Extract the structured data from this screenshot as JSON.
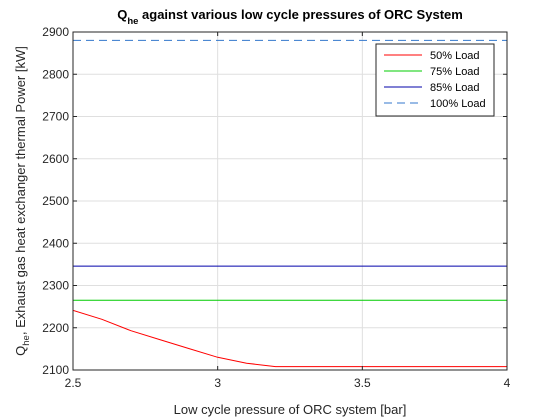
{
  "chart_data": {
    "type": "line",
    "title": "Q",
    "title_sub": "he",
    "title_rest": " against various low cycle pressures of ORC System",
    "xlabel": "Low cycle pressure of ORC system [bar]",
    "ylabel_main": "Q",
    "ylabel_sub": "he",
    "ylabel_rest": ", Exhaust gas heat exchanger thermal Power [kW]",
    "xlim": [
      2.5,
      4
    ],
    "ylim": [
      2100,
      2900
    ],
    "xticks": [
      2.5,
      3,
      3.5,
      4
    ],
    "xtick_labels": [
      "2.5",
      "3",
      "3.5",
      "4"
    ],
    "yticks": [
      2100,
      2200,
      2300,
      2400,
      2500,
      2600,
      2700,
      2800,
      2900
    ],
    "ytick_labels": [
      "2100",
      "2200",
      "2300",
      "2400",
      "2500",
      "2600",
      "2700",
      "2800",
      "2900"
    ],
    "grid": true,
    "legend_position": "top-right",
    "series": [
      {
        "name": "50% Load",
        "color": "#ff0000",
        "dash": "solid",
        "x": [
          2.5,
          2.6,
          2.7,
          2.8,
          2.9,
          3.0,
          3.1,
          3.2,
          3.3,
          3.4,
          3.5,
          3.6,
          3.7,
          3.8,
          3.9,
          4.0
        ],
        "y": [
          2241,
          2220,
          2193,
          2172,
          2151,
          2130,
          2116,
          2108,
          2108,
          2108,
          2108,
          2108,
          2108,
          2108,
          2108,
          2108
        ]
      },
      {
        "name": "75% Load",
        "color": "#00cc00",
        "dash": "solid",
        "x": [
          2.5,
          4.0
        ],
        "y": [
          2265,
          2265
        ]
      },
      {
        "name": "85% Load",
        "color": "#0000aa",
        "dash": "solid",
        "x": [
          2.5,
          4.0
        ],
        "y": [
          2346,
          2346
        ]
      },
      {
        "name": "100% Load",
        "color": "#3377cc",
        "dash": "dashed",
        "x": [
          2.5,
          4.0
        ],
        "y": [
          2880,
          2880
        ]
      }
    ]
  }
}
